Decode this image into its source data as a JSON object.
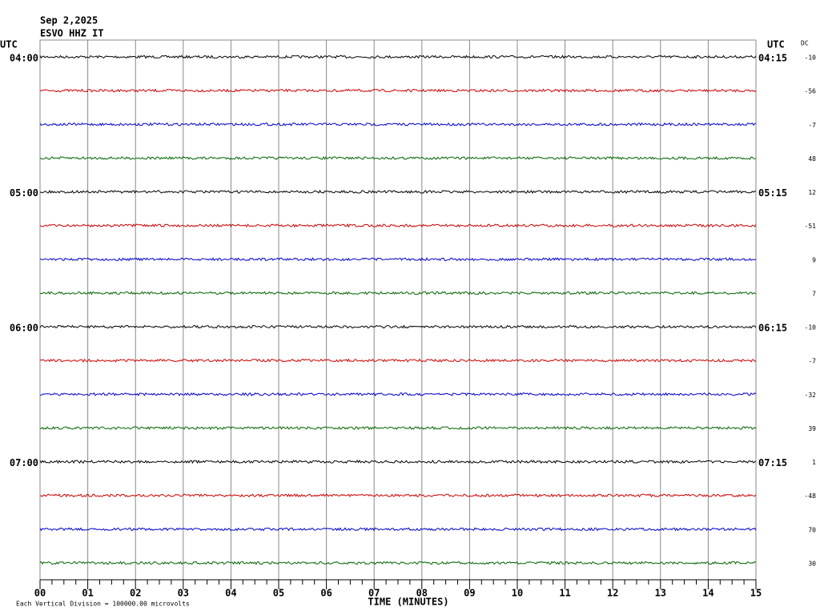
{
  "chart_data": {
    "type": "helicorder",
    "title": "Sep 2,2025",
    "subtitle": "ESVO HHZ IT",
    "left_axis_label": "UTC",
    "right_axis_label": "UTC",
    "dc_label": "DC",
    "xlabel": "TIME (MINUTES)",
    "footnote": "Each Vertical Division = 100000.00 microvolts",
    "xlim": [
      0,
      15
    ],
    "xticks": [
      {
        "value": 0,
        "label": "00"
      },
      {
        "value": 1,
        "label": "01"
      },
      {
        "value": 2,
        "label": "02"
      },
      {
        "value": 3,
        "label": "03"
      },
      {
        "value": 4,
        "label": "04"
      },
      {
        "value": 5,
        "label": "05"
      },
      {
        "value": 6,
        "label": "06"
      },
      {
        "value": 7,
        "label": "07"
      },
      {
        "value": 8,
        "label": "08"
      },
      {
        "value": 9,
        "label": "09"
      },
      {
        "value": 10,
        "label": "10"
      },
      {
        "value": 11,
        "label": "11"
      },
      {
        "value": 12,
        "label": "12"
      },
      {
        "value": 13,
        "label": "13"
      },
      {
        "value": 14,
        "label": "14"
      },
      {
        "value": 15,
        "label": "15"
      }
    ],
    "left_labels": [
      "04:00",
      null,
      null,
      null,
      "05:00",
      null,
      null,
      null,
      "06:00",
      null,
      null,
      null,
      "07:00",
      null,
      null,
      null
    ],
    "right_labels": [
      "04:15",
      null,
      null,
      null,
      "05:15",
      null,
      null,
      null,
      "06:15",
      null,
      null,
      null,
      "07:15",
      null,
      null,
      null
    ],
    "dc_values": [
      -10,
      -56,
      -7,
      48,
      12,
      -51,
      9,
      7,
      -10,
      -7,
      -32,
      39,
      1,
      -48,
      70,
      30
    ],
    "colors": [
      "#000000",
      "#cc0000",
      "#0000cc",
      "#006600"
    ]
  }
}
